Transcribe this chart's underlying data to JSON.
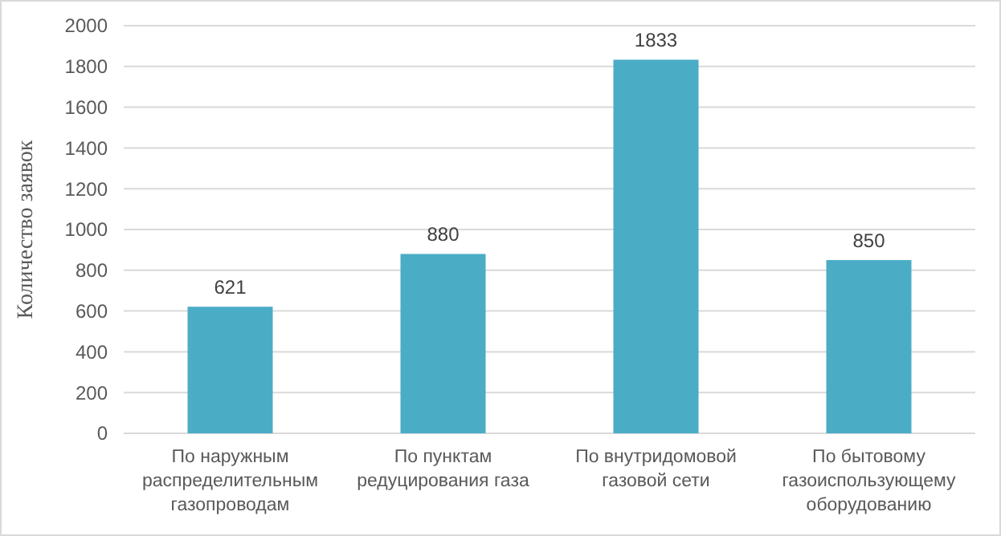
{
  "chart_data": {
    "type": "bar",
    "ylabel": "Количество заявок",
    "categories": [
      "По наружным\nраспределительным\nгазопроводам",
      "По пунктам\nредуцирования газа",
      "По внутридомовой\nгазовой сети",
      "По бытовому\nгазоиспользующему\nоборудованию"
    ],
    "values": [
      621,
      880,
      1833,
      850
    ],
    "color": "#4bacc6",
    "ylim": [
      0,
      2000
    ],
    "yticks": [
      0,
      200,
      400,
      600,
      800,
      1000,
      1200,
      1400,
      1600,
      1800,
      2000
    ],
    "grid": "y",
    "data_labels": true
  }
}
